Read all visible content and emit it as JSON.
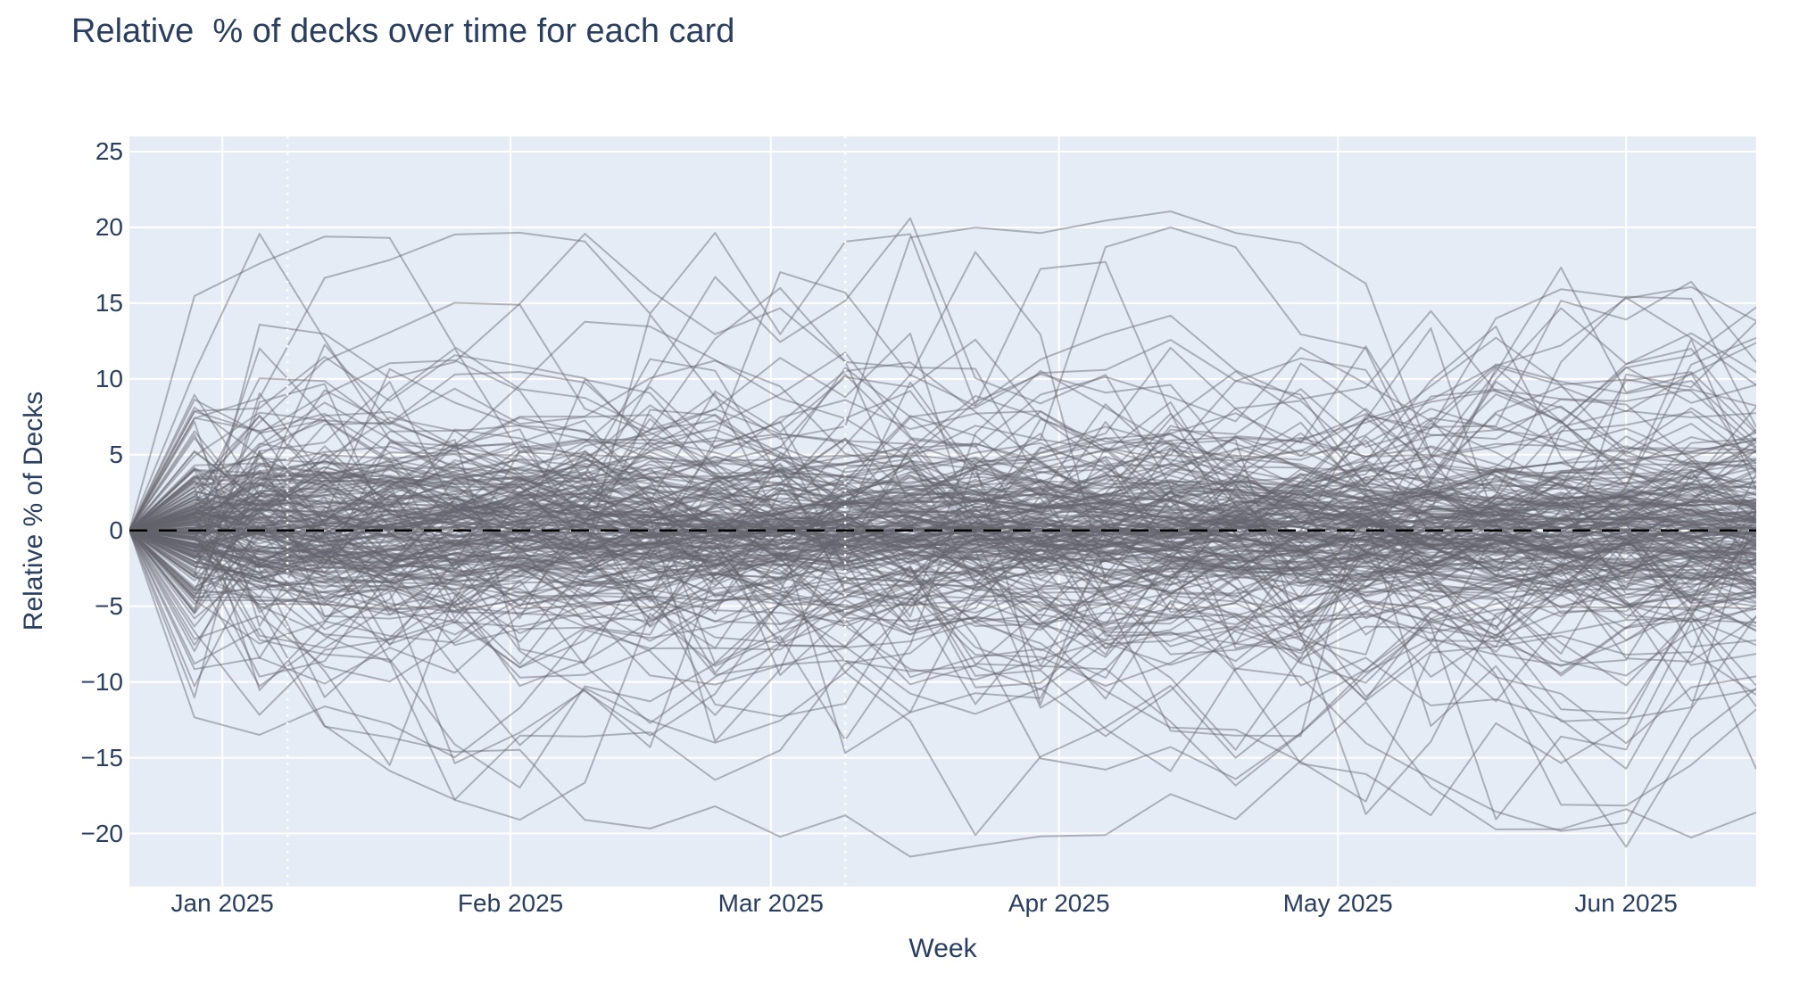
{
  "title": {
    "text": "Relative  % of decks over time for each card",
    "color": "#2a3f5f"
  },
  "chart_data": {
    "type": "line",
    "title": "Relative  % of decks over time for each card",
    "xlabel": "Week",
    "ylabel": "Relative % of Decks",
    "plot_background": "#e5ecf6",
    "text_color": "#2a3f5f",
    "x_axis": {
      "unit": "week",
      "first_point": "2024-12-22",
      "last_point": "2025-06-15",
      "interval_days": 7,
      "n_points": 26,
      "range_days": [
        0,
        175
      ],
      "ticks": [
        {
          "label": "Jan 2025",
          "day": 10
        },
        {
          "label": "Feb 2025",
          "day": 41
        },
        {
          "label": "Mar 2025",
          "day": 69
        },
        {
          "label": "Apr 2025",
          "day": 100
        },
        {
          "label": "May 2025",
          "day": 130
        },
        {
          "label": "Jun 2025",
          "day": 161
        }
      ]
    },
    "y_axis": {
      "range": [
        -23.5,
        26
      ],
      "ticks": [
        25,
        20,
        15,
        10,
        5,
        0,
        -5,
        -10,
        -15,
        -20
      ]
    },
    "grid": {
      "color": "#ffffff",
      "width": 2,
      "horizontal": true,
      "vertical": true
    },
    "zero_line": {
      "y": 0,
      "color": "#000000",
      "width": 2.5,
      "dash": [
        20,
        13
      ],
      "style": "dashed"
    },
    "event_markers": [
      {
        "approx_date": "2025-01-08",
        "day": 17,
        "color": "#ffffff",
        "style": "dotted",
        "width": 2.5
      },
      {
        "approx_date": "2025-03-09",
        "day": 77,
        "color": "#ffffff",
        "style": "dotted",
        "width": 2.5
      }
    ],
    "series_style": {
      "color": "rgba(100,100,108,0.45)",
      "width": 2
    },
    "series": {
      "description": "One gray line per card (~230 cards). Each line is the relative % of decks containing the card vs. its first week, so every line starts at 0 on 2024-12-22 and random-walks weekly. Typical band is about -10..+12 with extremes near +23 and -21.",
      "count": 230,
      "start_value": 0,
      "envelope": {
        "typical": [
          -10,
          12
        ],
        "max": 23,
        "min": -21
      },
      "generator": {
        "seed": 42,
        "rho": 0.88,
        "drift_scale": 0.12,
        "shock_boost": 1.5,
        "shock_steps": 2,
        "sigma_tiers": [
          [
            0.55,
            0.6,
            1.2
          ],
          [
            0.8,
            1.8,
            1.4
          ],
          [
            0.93,
            3.0,
            1.6
          ],
          [
            1.0,
            4.6,
            1.6
          ]
        ],
        "soft_clamp": 19,
        "clamp_factor": 0.25,
        "hard_clamp": [
          -22.8,
          25.5
        ]
      }
    },
    "legend": {
      "visible": false
    }
  }
}
